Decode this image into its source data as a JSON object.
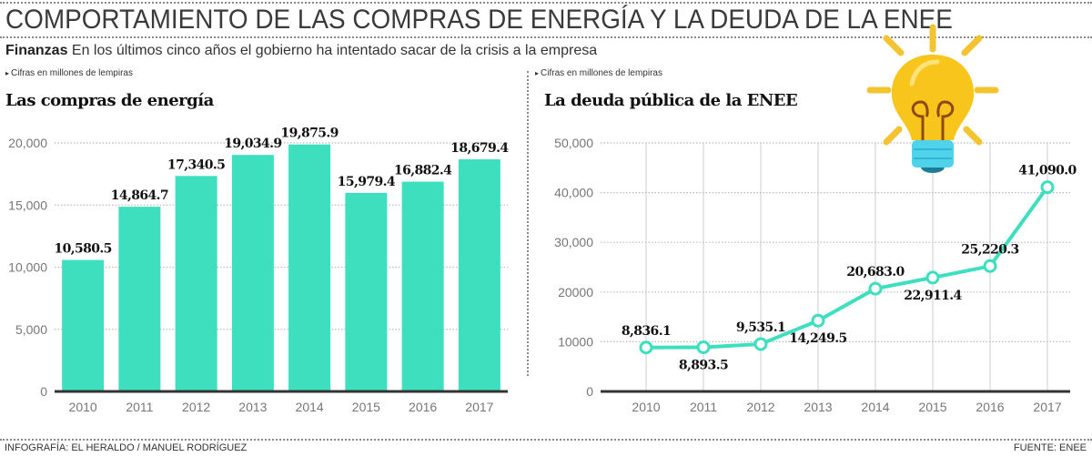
{
  "header": {
    "title": "COMPORTAMIENTO DE LAS COMPRAS DE ENERGÍA Y LA DEUDA DE LA ENEE",
    "subtitle_bold": "Finanzas",
    "subtitle_text": " En los últimos cinco años el gobierno ha intentado sacar de la crisis a la empresa"
  },
  "footer": {
    "credit": "INFOGRAFÍA: EL HERALDO / MANUEL RODRÍGUEZ",
    "source": "FUENTE: ENEE"
  },
  "icons": {
    "lightbulb": "lightbulb-icon",
    "note_marker": "▸"
  },
  "colors": {
    "accent": "#3ddfbe",
    "bulb": "#f7c21a",
    "bulb_base": "#47d4ec",
    "axis": "#333333",
    "grid": "#cccccc"
  },
  "chart_data": [
    {
      "type": "bar",
      "title": "Las compras de energía",
      "note": "Cifras en millones de lempiras",
      "categories": [
        "2010",
        "2011",
        "2012",
        "2013",
        "2014",
        "2015",
        "2016",
        "2017"
      ],
      "values": [
        10580.5,
        14864.7,
        17340.5,
        19034.9,
        19875.9,
        15979.4,
        16882.4,
        18679.4
      ],
      "value_labels": [
        "10,580.5",
        "14,864.7",
        "17,340.5",
        "19,034.9",
        "19,875.9",
        "15,979.4",
        "16,882.4",
        "18,679.4"
      ],
      "yticks": [
        0,
        5000,
        10000,
        15000,
        20000
      ],
      "ytick_labels": [
        "0",
        "5,000",
        "10,000",
        "15,000",
        "20,000"
      ],
      "ylim": [
        0,
        20000
      ],
      "xlabel": "",
      "ylabel": "",
      "grid": true,
      "legend": "none"
    },
    {
      "type": "line",
      "title": "La deuda pública de la ENEE",
      "note": "Cifras en millones de lempiras",
      "categories": [
        "2010",
        "2011",
        "2012",
        "2013",
        "2014",
        "2015",
        "2016",
        "2017"
      ],
      "values": [
        8836.1,
        8893.5,
        9535.1,
        14249.5,
        20683.0,
        22911.4,
        25220.3,
        41090.0
      ],
      "value_labels": [
        "8,836.1",
        "8,893.5",
        "9,535.1",
        "14,249.5",
        "20,683.0",
        "22,911.4",
        "25,220.3",
        "41,090.0"
      ],
      "label_positions": [
        "above",
        "below",
        "above",
        "below",
        "above",
        "below",
        "above",
        "above"
      ],
      "yticks": [
        0,
        10000,
        20000,
        30000,
        40000,
        50000
      ],
      "ytick_labels": [
        "0",
        "10000",
        "20000",
        "30,000",
        "40,000",
        "50,000"
      ],
      "ylim": [
        0,
        50000
      ],
      "xlabel": "",
      "ylabel": "",
      "grid": true,
      "legend": "none"
    }
  ]
}
